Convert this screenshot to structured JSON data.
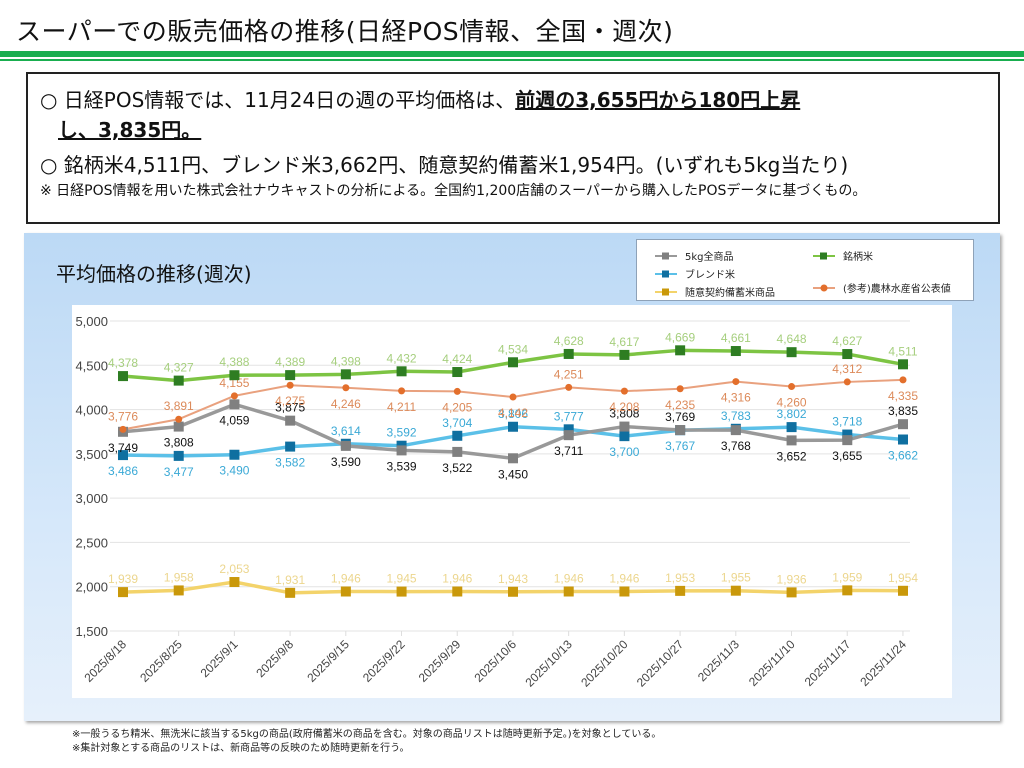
{
  "page": {
    "title": "スーパーでの販売価格の推移(日経POS情報、全国・週次)"
  },
  "summary": {
    "line1_prefix": "○  日経POS情報では、11月24日の週の平均価格は、",
    "line1_emphasis": "前週の3,655円から180円上昇",
    "line1b_emphasis": "し、3,835円。",
    "line2": "○  銘柄米4,511円、ブレンド米3,662円、随意契約備蓄米1,954円。(いずれも5kg当たり)",
    "note": "※  日経POS情報を用いた株式会社ナウキャストの分析による。全国約1,200店舗のスーパーから購入したPOSデータに基づくもの。"
  },
  "footnotes": [
    "※一般うるち精米、無洗米に該当する5kgの商品(政府備蓄米の商品を含む。対象の商品リストは随時更新予定。)を対象としている。",
    "※集計対象とする商品のリストは、新商品等の反映のため随時更新を行う。"
  ],
  "chart_data": {
    "type": "line",
    "title": "平均価格の推移(週次)",
    "xlabel": "",
    "ylabel": "",
    "ylim": [
      1500,
      5000
    ],
    "yticks": [
      1500,
      2000,
      2500,
      3000,
      3500,
      4000,
      4500,
      5000
    ],
    "ytick_labels": [
      "1,500",
      "2,000",
      "2,500",
      "3,000",
      "3,500",
      "4,000",
      "4,500",
      "5,000"
    ],
    "grid": true,
    "legend_position": "top-right",
    "categories": [
      "2025/8/18",
      "2025/8/25",
      "2025/9/1",
      "2025/9/8",
      "2025/9/15",
      "2025/9/22",
      "2025/9/29",
      "2025/10/6",
      "2025/10/13",
      "2025/10/20",
      "2025/10/27",
      "2025/11/3",
      "2025/11/10",
      "2025/11/17",
      "2025/11/24"
    ],
    "series": [
      {
        "name": "5kg全商品",
        "line_color": "#999999",
        "marker_color": "#808080",
        "marker": "square",
        "label_color": "#111111",
        "label_pos": [
          "below",
          "below",
          "below",
          "above",
          "below",
          "below",
          "below",
          "below",
          "below",
          "above",
          "above",
          "below",
          "below",
          "below",
          "above"
        ],
        "values": [
          3749,
          3808,
          4059,
          3875,
          3590,
          3539,
          3522,
          3450,
          3711,
          3808,
          3769,
          3768,
          3652,
          3655,
          3835
        ]
      },
      {
        "name": "ブレンド米",
        "line_color": "#5bc0e8",
        "marker_color": "#0f6fa0",
        "marker": "square",
        "label_color": "#3aa9d6",
        "label_pos": [
          "below",
          "below",
          "below",
          "below",
          "above",
          "above",
          "above",
          "above",
          "above",
          "below",
          "below",
          "above",
          "above",
          "above",
          "below"
        ],
        "values": [
          3486,
          3477,
          3490,
          3582,
          3614,
          3592,
          3704,
          3806,
          3777,
          3700,
          3767,
          3783,
          3802,
          3718,
          3662
        ]
      },
      {
        "name": "随意契約備蓄米商品",
        "line_color": "#f3d36a",
        "marker_color": "#c9980a",
        "marker": "square",
        "label_color": "#ecd68e",
        "label_pos": [
          "above",
          "above",
          "above",
          "above",
          "above",
          "above",
          "above",
          "above",
          "above",
          "above",
          "above",
          "above",
          "above",
          "above",
          "above"
        ],
        "values": [
          1939,
          1958,
          2053,
          1931,
          1946,
          1945,
          1946,
          1943,
          1946,
          1946,
          1953,
          1955,
          1936,
          1959,
          1954
        ]
      },
      {
        "name": "銘柄米",
        "line_color": "#7dc443",
        "marker_color": "#2e7d22",
        "marker": "square",
        "label_color": "#a6cf7e",
        "label_pos": [
          "above",
          "above",
          "above",
          "above",
          "above",
          "above",
          "above",
          "above",
          "above",
          "above",
          "above",
          "above",
          "above",
          "above",
          "above"
        ],
        "values": [
          4378,
          4327,
          4388,
          4389,
          4398,
          4432,
          4424,
          4534,
          4628,
          4617,
          4669,
          4661,
          4648,
          4627,
          4511
        ]
      },
      {
        "name": "(参考)農林水産省公表値",
        "line_color": "#e9a17e",
        "marker_color": "#e36f2c",
        "marker": "circle",
        "label_color": "#dc8a5a",
        "label_pos": [
          "above",
          "above",
          "above",
          "below",
          "below",
          "below",
          "below",
          "below",
          "above",
          "below",
          "below",
          "below",
          "below",
          "above",
          "below"
        ],
        "values": [
          3776,
          3891,
          4155,
          4275,
          4246,
          4211,
          4205,
          4142,
          4251,
          4208,
          4235,
          4316,
          4260,
          4312,
          4335
        ]
      }
    ]
  }
}
